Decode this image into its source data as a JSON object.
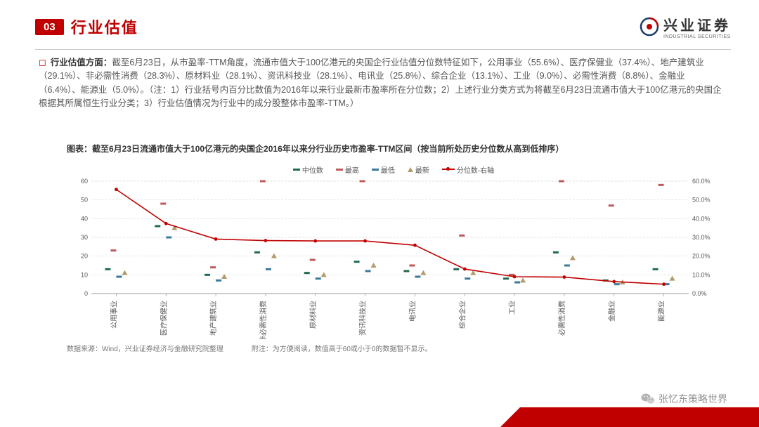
{
  "header": {
    "badge": "03",
    "title": "行业估值",
    "logo_cn": "兴业证券",
    "logo_en": "INDUSTRIAL SECURITIES"
  },
  "body": {
    "lead": "行业估值方面：",
    "text": "截至6月23日，从市盈率-TTM角度，流通市值大于100亿港元的央国企行业估值分位数特征如下，公用事业（55.6%）、医疗保健业（37.4%）、地产建筑业（29.1%）、非必需性消费（28.3%）、原材料业（28.1%）、资讯科技业（28.1%）、电讯业（25.8%）、综合企业（13.1%）、工业（9.0%）、必需性消费（8.8%）、金融业（6.4%）、能源业（5.0%）。（注：1）行业括号内百分比数值为2016年以来行业最新市盈率所在分位数；2）上述行业分类方式为将截至6月23日流通市值大于100亿港元的央国企根据其所属恒生行业分类；3）行业估值情况为行业中的成分股整体市盈率-TTM。）"
  },
  "chart": {
    "title": "图表：截至6月23日流通市值大于100亿港元的央国企2016年以来分行业历史市盈率-TTM区间（按当前所处历史分位数从高到低排序）",
    "legend": {
      "median": "中位数",
      "high": "最高",
      "low": "最低",
      "latest": "最新",
      "pct": "分位数-右轴"
    },
    "colors": {
      "median": "#1f6b4d",
      "high": "#c05a5a",
      "low": "#3a7a9a",
      "latest": "#b29a6a",
      "line": "#c00000",
      "grid": "#d8d8d8",
      "axis": "#999",
      "text": "#555"
    },
    "y_left": {
      "min": 0,
      "max": 60,
      "step": 10
    },
    "y_right": {
      "min": 0,
      "max": 60,
      "step": 10,
      "suffix": "%"
    },
    "categories": [
      "公用事业",
      "医疗保健业",
      "地产建筑业",
      "非必需性消费",
      "原材料业",
      "资讯科技业",
      "电讯业",
      "综合企业",
      "工业",
      "必需性消费",
      "金融业",
      "能源业"
    ],
    "series": {
      "median": [
        13,
        36,
        10,
        22,
        11,
        17,
        12,
        13,
        8,
        22,
        7,
        13
      ],
      "high": [
        23,
        48,
        14,
        60,
        18,
        60,
        15,
        31,
        10,
        60,
        47,
        58
      ],
      "low": [
        9,
        30,
        7,
        13,
        8,
        12,
        9,
        8,
        6,
        15,
        5,
        5
      ],
      "latest": [
        11,
        35,
        9,
        20,
        10,
        15,
        11,
        11,
        7,
        19,
        6,
        8
      ],
      "pct": [
        55.6,
        37.4,
        29.1,
        28.3,
        28.1,
        28.1,
        25.8,
        13.1,
        9.0,
        8.8,
        6.4,
        5.0
      ]
    }
  },
  "source": {
    "src": "数据来源：Wind，兴业证券经济与金融研究院整理",
    "note": "附注：为方便阅读，数值高于60或小于0的数据暂不显示。"
  },
  "watermark": "张忆东策略世界"
}
